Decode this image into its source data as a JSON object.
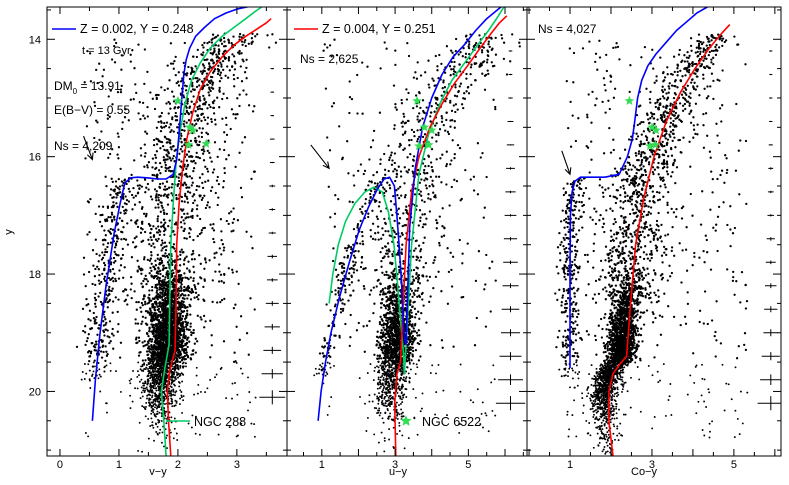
{
  "chart_data": {
    "type": "scatter",
    "y_axis": {
      "label": "y",
      "range": [
        21.1,
        13.45
      ],
      "ticks": [
        14,
        16,
        18,
        20
      ],
      "inverted": true
    },
    "colors": {
      "blue": "#0000ff",
      "red": "#ff0000",
      "green": "#00cc66",
      "stars": "#33dd55",
      "points": "#000000"
    },
    "panels": [
      {
        "id": "v-y",
        "xlabel": "v−y",
        "xlim": [
          -0.22,
          3.85
        ],
        "xticks": [
          0,
          1,
          2,
          3
        ],
        "ns_label": "Ns = 4,209",
        "annotations": {
          "legend_blue": "Z = 0.002, Y = 0.248",
          "age": "t = 13 Gyr",
          "dm": "DM",
          "dm_sub": "0",
          "dm_value": " = 13.91",
          "ebv": "E(B−V) = 0.55",
          "legend_green": "NGC 288"
        },
        "isochrone_blue": {
          "x": [
            0.55,
            0.6,
            0.68,
            0.78,
            0.92,
            1.02,
            1.1,
            1.2,
            1.32,
            1.48,
            1.65,
            1.8,
            1.92,
            1.98,
            2.02,
            2.05,
            2.08,
            2.1,
            2.14,
            2.2,
            2.3,
            2.45,
            2.62,
            2.82,
            3.02,
            3.22,
            3.35
          ],
          "y": [
            20.5,
            19.8,
            19.0,
            18.2,
            17.3,
            16.8,
            16.45,
            16.36,
            16.35,
            16.36,
            16.38,
            16.38,
            16.3,
            16.05,
            15.6,
            15.2,
            14.85,
            14.6,
            14.35,
            14.15,
            13.95,
            13.8,
            13.65,
            13.55,
            13.48,
            13.44,
            13.42
          ]
        },
        "isochrone_green": {
          "x": [
            1.8,
            1.76,
            1.72,
            1.78,
            1.85,
            1.86,
            1.88,
            1.92,
            1.97,
            2.03,
            2.12,
            2.23,
            2.38,
            2.55,
            2.75,
            2.95,
            3.15,
            3.32,
            3.45,
            3.55
          ],
          "y": [
            21.1,
            20.5,
            20.0,
            19.6,
            19.2,
            18.5,
            17.5,
            16.8,
            16.1,
            15.6,
            15.1,
            14.7,
            14.4,
            14.15,
            13.95,
            13.8,
            13.65,
            13.52,
            13.43,
            13.4
          ]
        },
        "isochrone_red": {
          "x": [
            1.88,
            1.84,
            1.82,
            1.86,
            1.95,
            1.97,
            1.98,
            2.02,
            2.08,
            2.15,
            2.25,
            2.38,
            2.55,
            2.75,
            2.95,
            3.15,
            3.35,
            3.5,
            3.58
          ],
          "y": [
            21.1,
            20.5,
            20.0,
            19.65,
            19.3,
            18.5,
            17.5,
            16.8,
            16.2,
            15.7,
            15.25,
            14.85,
            14.55,
            14.3,
            14.1,
            13.95,
            13.82,
            13.72,
            13.65
          ]
        },
        "stars": {
          "x": [
            2.0,
            2.2,
            2.25,
            2.18,
            2.48
          ],
          "y": [
            15.05,
            15.5,
            15.55,
            15.8,
            15.78
          ]
        },
        "arrow": {
          "from": [
            0.4,
            15.65
          ],
          "to": [
            0.55,
            16.05
          ]
        },
        "cluster": {
          "ms_x": 1.9,
          "ms_y": 19.2,
          "n": 4200,
          "seed": 11
        },
        "error_bars": {
          "x": 3.6,
          "y": [
            14.5,
            14.9,
            15.3,
            15.7,
            16.1,
            16.5,
            16.9,
            17.3,
            17.7,
            18.1,
            18.5,
            18.9,
            19.3,
            19.7,
            20.1
          ],
          "xerr": [
            0.03,
            0.03,
            0.03,
            0.04,
            0.04,
            0.05,
            0.05,
            0.06,
            0.08,
            0.09,
            0.11,
            0.13,
            0.15,
            0.18,
            0.22
          ],
          "yerr": [
            0.01,
            0.01,
            0.01,
            0.01,
            0.01,
            0.02,
            0.02,
            0.02,
            0.03,
            0.03,
            0.04,
            0.05,
            0.06,
            0.08,
            0.12
          ]
        }
      },
      {
        "id": "u-y",
        "xlabel": "u−y",
        "xlim": [
          0.05,
          6.6
        ],
        "xticks": [
          1,
          3,
          5
        ],
        "ns_label": "Ns = 2,625",
        "annotations": {
          "legend_red": "Z = 0.004, Y = 0.251",
          "legend_stars": "NGC 6522"
        },
        "isochrone_blue": {
          "x": [
            0.9,
            0.98,
            1.1,
            1.25,
            1.48,
            1.75,
            2.02,
            2.28,
            2.52,
            2.7,
            2.85,
            2.98,
            3.05,
            3.12,
            3.18,
            3.22,
            3.25,
            3.3,
            3.4,
            3.55,
            3.75,
            4.0,
            4.28,
            4.58,
            4.88,
            5.2,
            5.5,
            5.75,
            5.95
          ],
          "y": [
            20.5,
            20.0,
            19.5,
            19.0,
            18.4,
            17.8,
            17.25,
            16.85,
            16.55,
            16.38,
            16.35,
            16.5,
            17.0,
            17.6,
            18.2,
            18.8,
            19.1,
            19.2,
            17.2,
            16.2,
            15.5,
            15.0,
            14.6,
            14.3,
            14.1,
            13.85,
            13.65,
            13.52,
            13.42
          ]
        },
        "isochrone_green": {
          "x": [
            1.2,
            1.3,
            1.45,
            1.65,
            1.9,
            2.18,
            2.42,
            2.65,
            2.82,
            2.97,
            3.07,
            3.15,
            3.22,
            3.25,
            3.3,
            3.45,
            3.65,
            3.92,
            4.22,
            4.55,
            4.9,
            5.25,
            5.55,
            5.8,
            6.0
          ],
          "y": [
            18.5,
            18.0,
            17.5,
            17.1,
            16.8,
            16.6,
            16.52,
            16.6,
            16.95,
            17.5,
            18.2,
            18.8,
            19.3,
            19.7,
            19.2,
            17.5,
            16.3,
            15.6,
            15.1,
            14.7,
            14.4,
            14.1,
            13.85,
            13.62,
            13.42
          ]
        },
        "isochrone_red": {
          "x": [
            3.02,
            2.99,
            3.05,
            3.15,
            3.22,
            3.3,
            3.45,
            3.65,
            3.95,
            4.28,
            4.62,
            4.98,
            5.32,
            5.62,
            5.85,
            6.05
          ],
          "y": [
            21.1,
            20.2,
            19.7,
            19.5,
            18.5,
            17.5,
            16.6,
            16.0,
            15.5,
            15.1,
            14.75,
            14.45,
            14.15,
            13.9,
            13.72,
            13.6
          ]
        },
        "stars": {
          "x": [
            3.6,
            3.8,
            4.0,
            3.65,
            3.92
          ],
          "y": [
            15.05,
            15.5,
            15.55,
            15.82,
            15.8
          ]
        },
        "arrow": {
          "from": [
            0.7,
            15.8
          ],
          "to": [
            1.2,
            16.2
          ]
        },
        "cluster": {
          "ms_x": 2.8,
          "ms_y": 19.2,
          "n": 2600,
          "seed": 23
        },
        "error_bars": {
          "x": 6.15,
          "y": [
            14.2,
            14.6,
            15.0,
            15.4,
            15.8,
            16.2,
            16.6,
            17.0,
            17.4,
            17.8,
            18.2,
            18.6,
            19.0,
            19.4,
            19.8,
            20.2
          ],
          "xerr": [
            0.05,
            0.05,
            0.06,
            0.08,
            0.1,
            0.12,
            0.14,
            0.16,
            0.18,
            0.2,
            0.22,
            0.24,
            0.26,
            0.3,
            0.34,
            0.4
          ],
          "yerr": [
            0.01,
            0.01,
            0.01,
            0.01,
            0.01,
            0.02,
            0.02,
            0.02,
            0.03,
            0.03,
            0.04,
            0.05,
            0.06,
            0.07,
            0.09,
            0.12
          ]
        }
      },
      {
        "id": "Co-y",
        "xlabel": "Co−y",
        "xlim": [
          -0.05,
          6.15
        ],
        "xticks": [
          1,
          3,
          5
        ],
        "ns_label": "Ns = 4,027",
        "annotations": {},
        "isochrone_blue": {
          "x": [
            1.0,
            1.0,
            1.0,
            1.01,
            1.05,
            1.12,
            1.25,
            1.5,
            1.85,
            2.2,
            2.4,
            2.52,
            2.58,
            2.65,
            2.75,
            2.9,
            3.1,
            3.35,
            3.6,
            3.85,
            4.1,
            4.35,
            4.6
          ],
          "y": [
            19.6,
            19.0,
            18.0,
            17.0,
            16.6,
            16.42,
            16.35,
            16.35,
            16.35,
            16.3,
            16.0,
            15.7,
            15.4,
            15.0,
            14.7,
            14.45,
            14.25,
            14.05,
            13.85,
            13.7,
            13.55,
            13.45,
            13.4
          ]
        },
        "isochrone_red": {
          "x": [
            2.05,
            1.95,
            1.95,
            2.05,
            2.2,
            2.38,
            2.48,
            2.6,
            2.8,
            3.05,
            3.35,
            3.7,
            4.05,
            4.4,
            4.7,
            4.9
          ],
          "y": [
            21.1,
            20.5,
            20.0,
            19.7,
            19.55,
            19.4,
            18.5,
            17.5,
            16.7,
            16.0,
            15.4,
            14.9,
            14.5,
            14.15,
            13.9,
            13.75
          ]
        },
        "stars": {
          "x": [
            2.45,
            3.0,
            3.1,
            2.95,
            3.08
          ],
          "y": [
            15.05,
            15.5,
            15.55,
            15.82,
            15.8
          ]
        },
        "arrow": {
          "from": [
            0.8,
            15.9
          ],
          "to": [
            1.0,
            16.3
          ]
        },
        "cluster": {
          "ms_x": 2.0,
          "ms_y": 19.4,
          "n": 4000,
          "seed": 37
        },
        "error_bars": {
          "x": 5.9,
          "y": [
            14.2,
            14.6,
            15.0,
            15.4,
            15.8,
            16.2,
            16.6,
            17.0,
            17.4,
            17.8,
            18.2,
            18.6,
            19.0,
            19.4,
            19.8,
            20.2
          ],
          "xerr": [
            0.03,
            0.03,
            0.04,
            0.04,
            0.05,
            0.06,
            0.07,
            0.08,
            0.1,
            0.12,
            0.14,
            0.16,
            0.18,
            0.22,
            0.26,
            0.32
          ],
          "yerr": [
            0.01,
            0.01,
            0.01,
            0.01,
            0.01,
            0.02,
            0.02,
            0.02,
            0.03,
            0.03,
            0.04,
            0.05,
            0.06,
            0.07,
            0.09,
            0.12
          ]
        }
      }
    ]
  }
}
